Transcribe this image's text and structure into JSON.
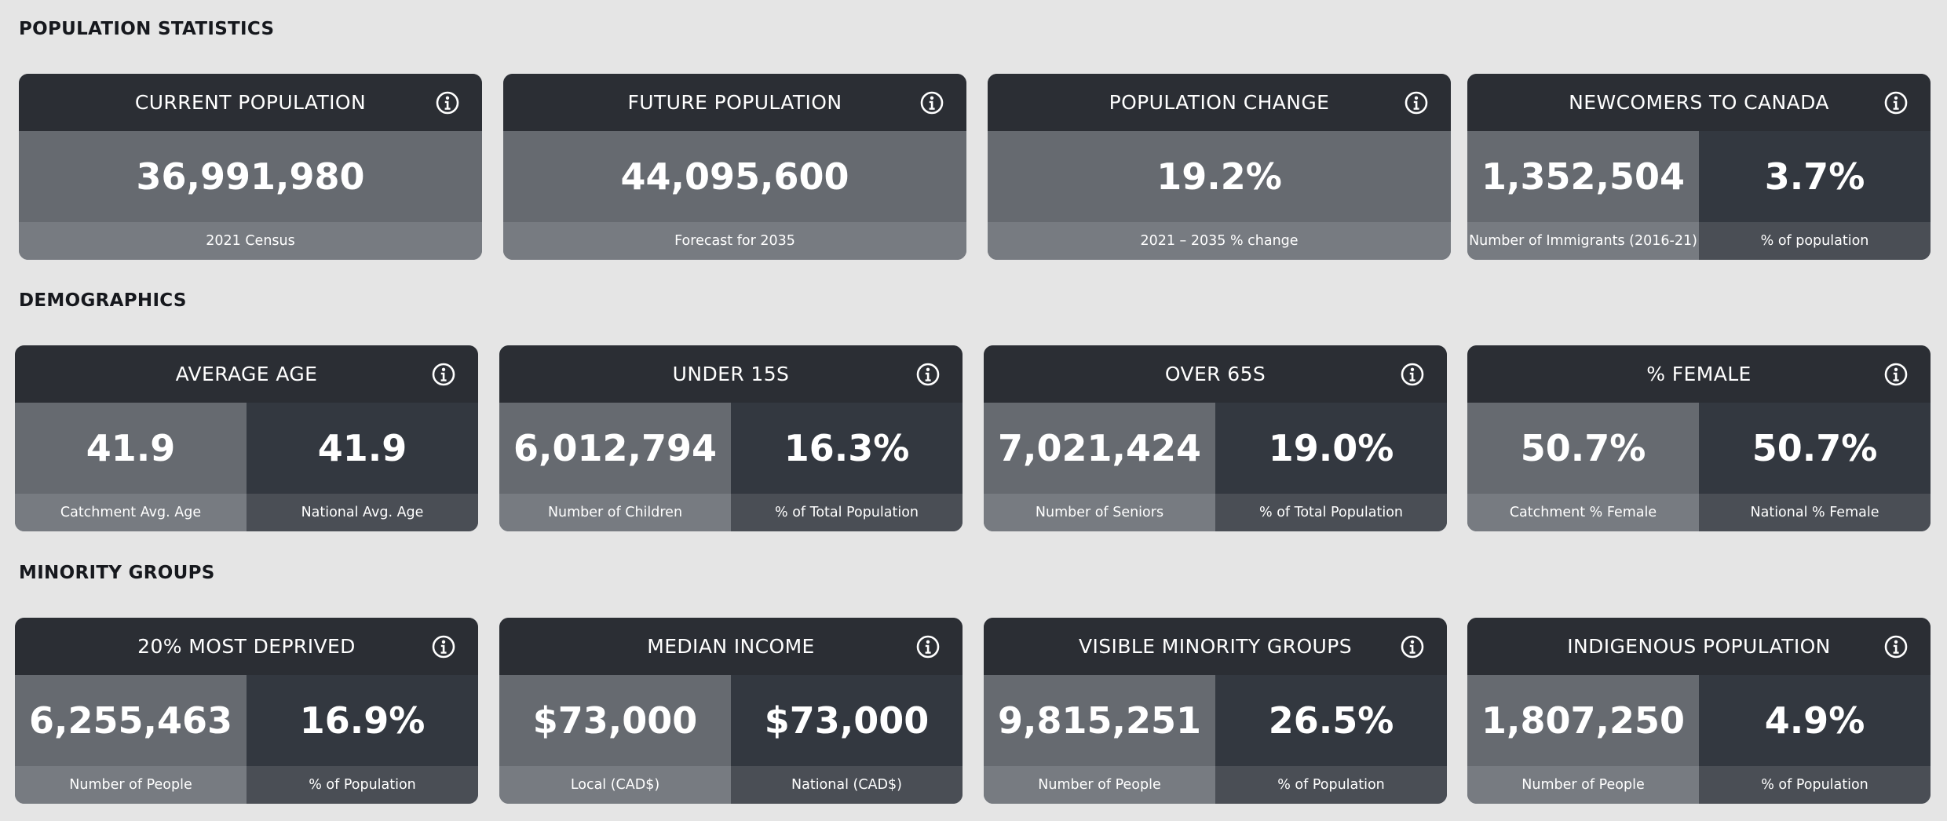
{
  "sections": [
    {
      "title": "POPULATION STATISTICS",
      "cards": [
        {
          "title": "CURRENT POPULATION",
          "left": {
            "value": "36,991,980",
            "label": "2021 Census"
          }
        },
        {
          "title": "FUTURE POPULATION",
          "left": {
            "value": "44,095,600",
            "label": "Forecast for 2035"
          }
        },
        {
          "title": "POPULATION CHANGE",
          "left": {
            "value": "19.2%",
            "label": "2021 – 2035 % change"
          }
        },
        {
          "title": "NEWCOMERS TO CANADA",
          "left": {
            "value": "1,352,504",
            "label": "Number of Immigrants (2016-21)"
          },
          "right": {
            "value": "3.7%",
            "label": "% of population"
          }
        }
      ]
    },
    {
      "title": "DEMOGRAPHICS",
      "cards": [
        {
          "title": "AVERAGE AGE",
          "left": {
            "value": "41.9",
            "label": "Catchment Avg. Age"
          },
          "right": {
            "value": "41.9",
            "label": "National Avg. Age"
          }
        },
        {
          "title": "UNDER 15S",
          "left": {
            "value": "6,012,794",
            "label": "Number of Children"
          },
          "right": {
            "value": "16.3%",
            "label": "% of Total Population"
          }
        },
        {
          "title": "OVER 65S",
          "left": {
            "value": "7,021,424",
            "label": "Number of Seniors"
          },
          "right": {
            "value": "19.0%",
            "label": "% of Total Population"
          }
        },
        {
          "title": "% FEMALE",
          "left": {
            "value": "50.7%",
            "label": "Catchment % Female"
          },
          "right": {
            "value": "50.7%",
            "label": "National % Female"
          }
        }
      ]
    },
    {
      "title": "MINORITY GROUPS",
      "cards": [
        {
          "title": "20% MOST DEPRIVED",
          "left": {
            "value": "6,255,463",
            "label": "Number of People"
          },
          "right": {
            "value": "16.9%",
            "label": "% of Population"
          }
        },
        {
          "title": "MEDIAN INCOME",
          "left": {
            "value": "$73,000",
            "label": "Local (CAD$)"
          },
          "right": {
            "value": "$73,000",
            "label": "National (CAD$)"
          }
        },
        {
          "title": "VISIBLE MINORITY GROUPS",
          "left": {
            "value": "9,815,251",
            "label": "Number of People"
          },
          "right": {
            "value": "26.5%",
            "label": "% of Population"
          }
        },
        {
          "title": "INDIGENOUS POPULATION",
          "left": {
            "value": "1,807,250",
            "label": "Number of People"
          },
          "right": {
            "value": "4.9%",
            "label": "% of Population"
          }
        }
      ]
    }
  ],
  "icons": {
    "info": "info-circle-icon"
  }
}
